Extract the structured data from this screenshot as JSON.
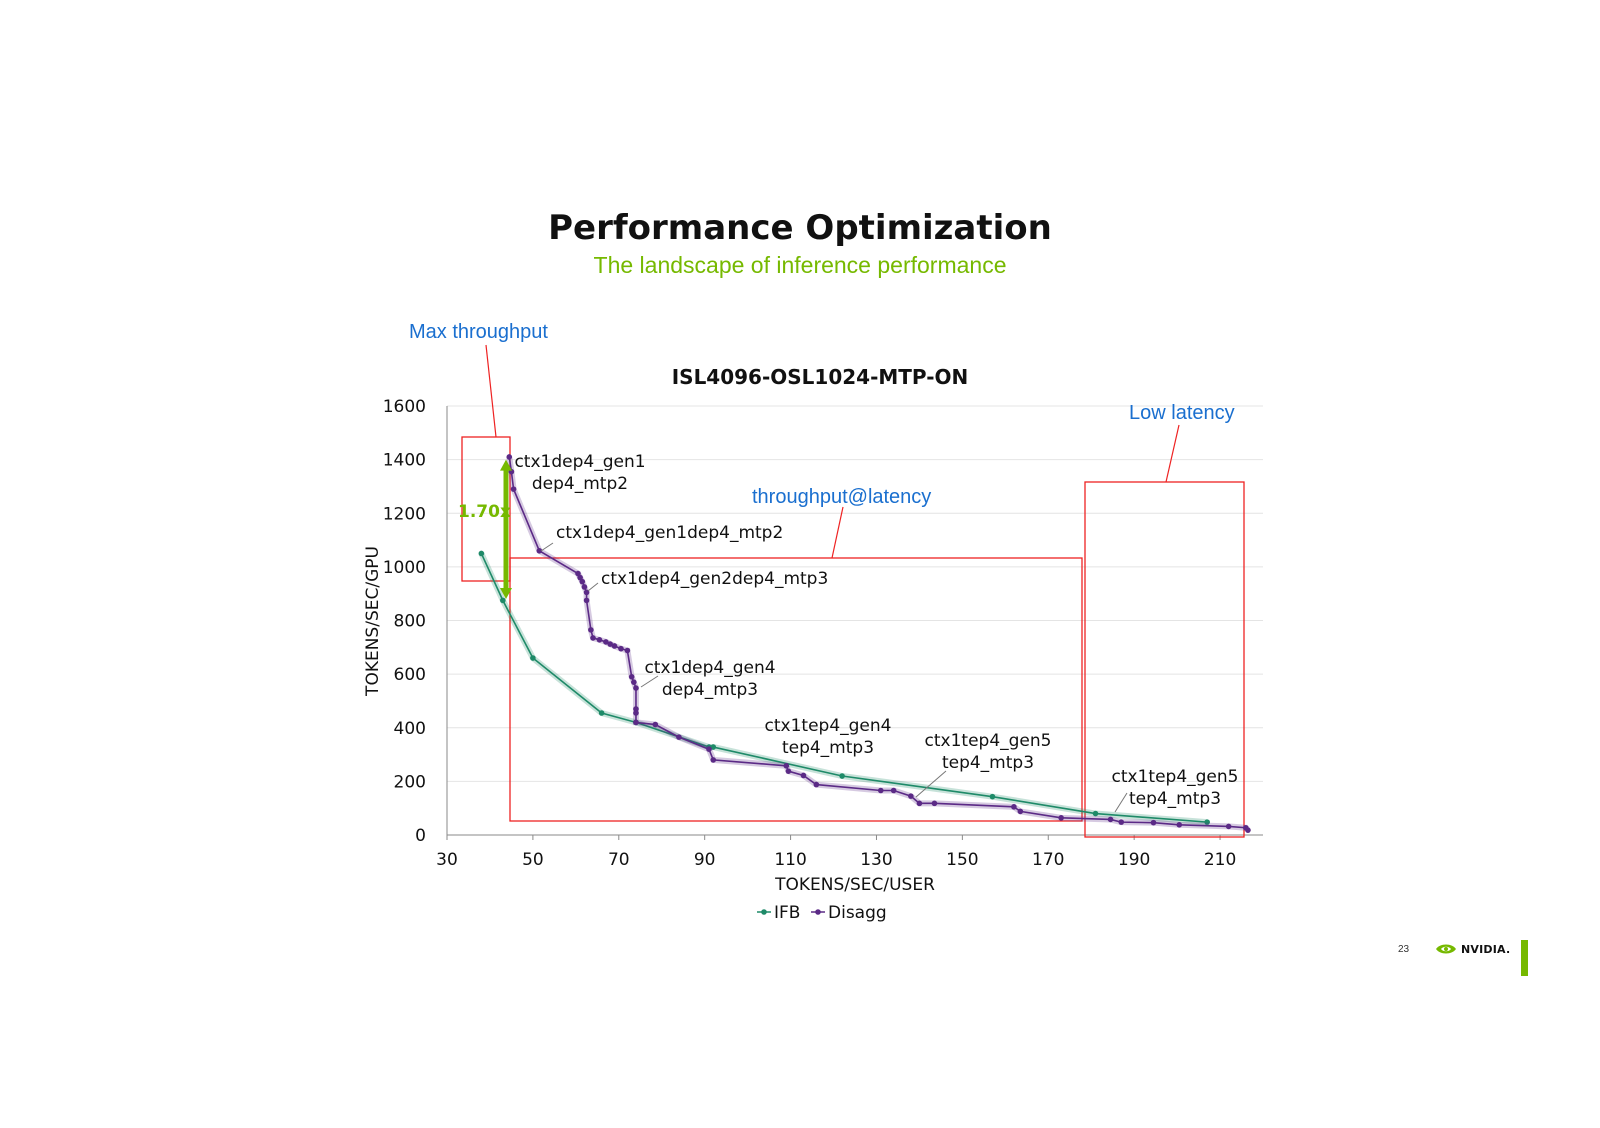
{
  "slide": {
    "title": "Performance Optimization",
    "subtitle": "The landscape of inference performance",
    "page_number": "23",
    "logo_text": "NVIDIA."
  },
  "colors": {
    "ifb": "#1e8a68",
    "disagg": "#5b2a86",
    "box": "#ee2222",
    "callout": "#1a6fcf",
    "accent": "#76b900"
  },
  "callouts": {
    "max_throughput": "Max throughput",
    "throughput_latency": "throughput@latency",
    "low_latency": "Low latency",
    "ratio": "1.70x"
  },
  "annotations": [
    {
      "lines": [
        "ctx1dep4_gen1",
        "dep4_mtp2"
      ],
      "x": 44.5,
      "y": 1410
    },
    {
      "lines": [
        "ctx1dep4_gen1dep4_mtp2"
      ],
      "x": 51.5,
      "y": 1060
    },
    {
      "lines": [
        "ctx1dep4_gen2dep4_mtp3"
      ],
      "x": 63.5,
      "y": 940
    },
    {
      "lines": [
        "ctx1dep4_gen4",
        "dep4_mtp3"
      ],
      "x": 75.5,
      "y": 570
    },
    {
      "lines": [
        "ctx1tep4_gen4",
        "tep4_mtp3"
      ],
      "x": null,
      "y": null
    },
    {
      "lines": [
        "ctx1tep4_gen5",
        "tep4_mtp3"
      ],
      "x": 139.5,
      "y": 150
    },
    {
      "lines": [
        "ctx1tep4_gen5",
        "tep4_mtp3"
      ],
      "x": 186,
      "y": 85
    }
  ],
  "chart_data": {
    "type": "line",
    "title": "ISL4096-OSL1024-MTP-ON",
    "xlabel": "TOKENS/SEC/USER",
    "ylabel": "TOKENS/SEC/GPU",
    "xlim": [
      30,
      220
    ],
    "ylim": [
      0,
      1600
    ],
    "xticks": [
      "30",
      "50",
      "70",
      "90",
      "110",
      "130",
      "150",
      "170",
      "190",
      "210"
    ],
    "yticks": [
      "0",
      "200",
      "400",
      "600",
      "800",
      "1000",
      "1200",
      "1400",
      "1600"
    ],
    "grid": true,
    "legend": "bottom",
    "series": [
      {
        "name": "IFB",
        "points": [
          [
            38,
            1050
          ],
          [
            43,
            875
          ],
          [
            50,
            660
          ],
          [
            66,
            455
          ],
          [
            74,
            420
          ],
          [
            91,
            328
          ],
          [
            92,
            328
          ],
          [
            122,
            220
          ],
          [
            157,
            143
          ],
          [
            181,
            80
          ],
          [
            207,
            48
          ]
        ]
      },
      {
        "name": "Disagg",
        "points": [
          [
            44.5,
            1410
          ],
          [
            45,
            1355
          ],
          [
            45.5,
            1290
          ],
          [
            51.5,
            1060
          ],
          [
            60.5,
            975
          ],
          [
            61,
            960
          ],
          [
            61.5,
            945
          ],
          [
            62,
            925
          ],
          [
            62.5,
            905
          ],
          [
            62.5,
            875
          ],
          [
            63.5,
            765
          ],
          [
            64,
            735
          ],
          [
            65.5,
            728
          ],
          [
            67,
            720
          ],
          [
            68,
            712
          ],
          [
            69,
            705
          ],
          [
            70.5,
            695
          ],
          [
            72,
            688
          ],
          [
            73,
            590
          ],
          [
            73.5,
            570
          ],
          [
            74,
            548
          ],
          [
            74,
            470
          ],
          [
            74,
            455
          ],
          [
            74,
            420
          ],
          [
            78.5,
            412
          ],
          [
            84,
            365
          ],
          [
            91,
            320
          ],
          [
            92,
            280
          ],
          [
            109,
            258
          ],
          [
            109.5,
            238
          ],
          [
            113,
            222
          ],
          [
            116,
            188
          ],
          [
            131,
            166
          ],
          [
            134,
            166
          ],
          [
            138,
            145
          ],
          [
            140,
            118
          ],
          [
            143.5,
            118
          ],
          [
            162,
            105
          ],
          [
            163.5,
            88
          ],
          [
            173,
            64
          ],
          [
            184.5,
            58
          ],
          [
            187,
            48
          ],
          [
            194.5,
            46
          ],
          [
            200.5,
            38
          ],
          [
            212,
            32
          ],
          [
            216,
            27
          ],
          [
            216.5,
            18
          ]
        ]
      }
    ]
  }
}
